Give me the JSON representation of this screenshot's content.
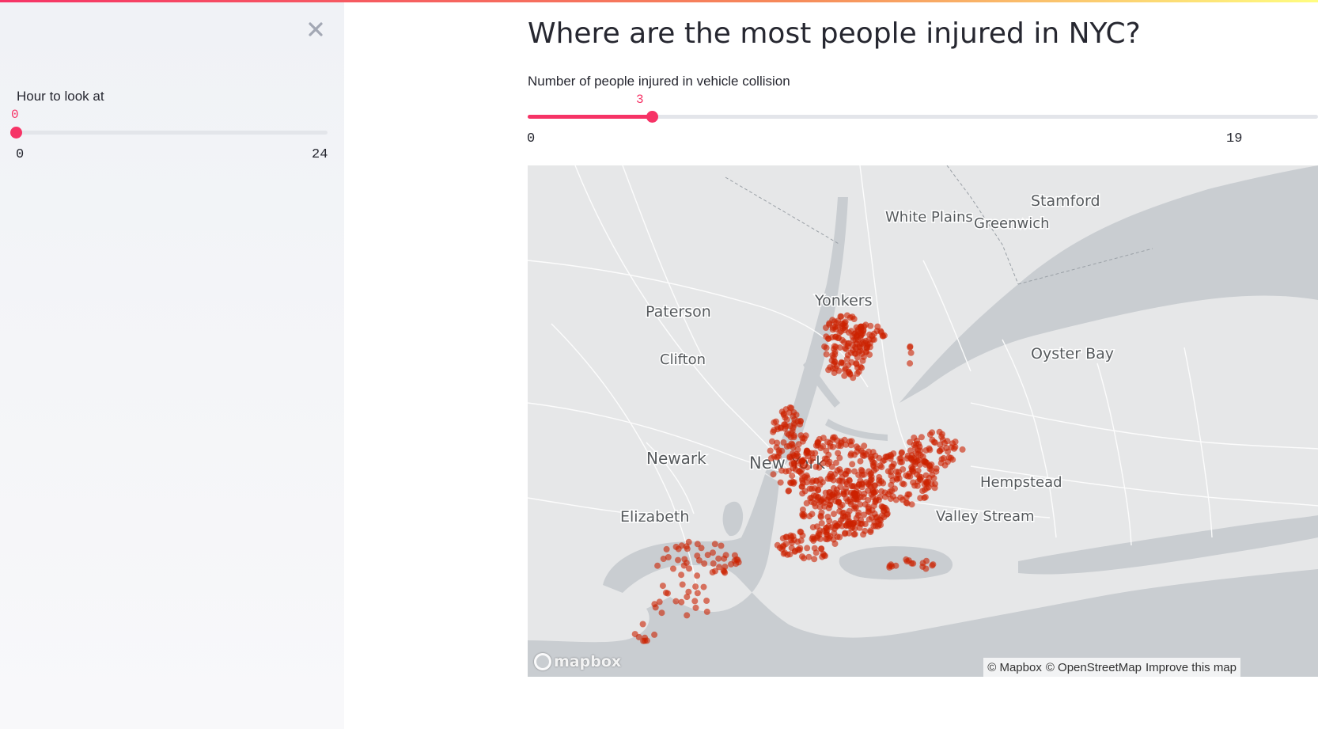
{
  "sidebar": {
    "slider_label": "Hour to look at",
    "slider_value": "0",
    "slider_min": "0",
    "slider_max": "24",
    "slider_fraction": 0
  },
  "main": {
    "title": "Where are the most people injured in NYC?",
    "slider_label": "Number of people injured in vehicle collision",
    "slider_value": "3",
    "slider_min": "0",
    "slider_max_visible": "19",
    "slider_fill_fraction": 0.158
  },
  "map": {
    "places": [
      "Stamford",
      "White Plains",
      "Greenwich",
      "Yonkers",
      "Paterson",
      "Clifton",
      "Oyster Bay",
      "Newark",
      "New York",
      "Hempstead",
      "Elizabeth",
      "Valley Stream"
    ],
    "logo": "mapbox",
    "attribution": [
      "© Mapbox",
      "© OpenStreetMap",
      "Improve this map"
    ],
    "point_color": "#cc2200"
  },
  "colors": {
    "accent": "#f63366",
    "sidebar_bg": "#f0f2f6",
    "water": "#c9cdd1",
    "land": "#e6e7e8"
  }
}
